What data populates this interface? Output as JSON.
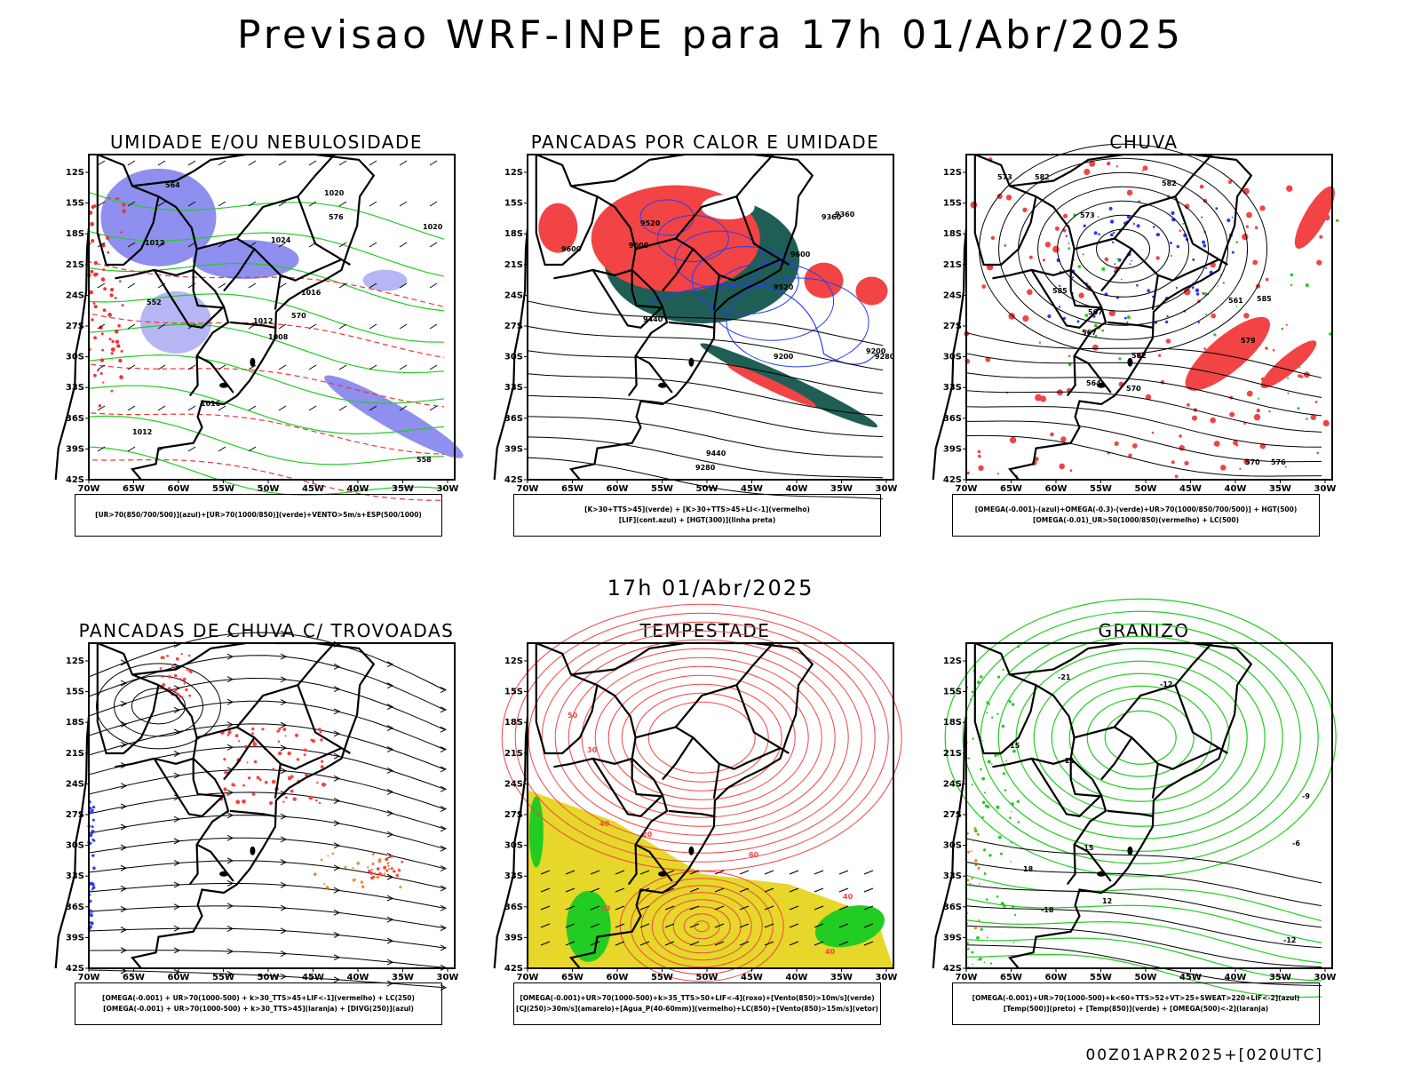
{
  "header": {
    "title": "Previsao WRF-INPE  para 17h 01/Abr/2025"
  },
  "middle_label": "17h 01/Abr/2025",
  "footer": "00Z01APR2025+[020UTC]",
  "axes": {
    "lat_ticks": [
      "12S",
      "15S",
      "18S",
      "21S",
      "24S",
      "27S",
      "30S",
      "33S",
      "36S",
      "39S",
      "42S"
    ],
    "lon_ticks": [
      "70W",
      "65W",
      "60W",
      "55W",
      "50W",
      "45W",
      "40W",
      "35W",
      "30W"
    ]
  },
  "panels": [
    {
      "title": "UMIDADE E/OU NEBULOSIDADE",
      "legend": [
        "[UR>70(850/700/500)](azul)+[UR>70(1000/850)](verde)+VENTO>5m/s+ESP(500/1000)"
      ],
      "contour_labels": [
        "1008",
        "1012",
        "1012",
        "1012",
        "1016",
        "1016",
        "1020",
        "1024",
        "576",
        "570",
        "564",
        "558",
        "552",
        "1020"
      ],
      "colors": {
        "fill": "#8f8ff0",
        "contour": "#22cc22",
        "dashed": "#ee3333"
      }
    },
    {
      "title": "PANCADAS POR CALOR E UMIDADE",
      "legend": [
        "[K>30+TTS>45](verde) + [K>30+TTS>45+LI<-1](vermelho)",
        "[LIF](cont.azul) + [HGT(300)](linha preta)"
      ],
      "contour_labels": [
        "9600",
        "9600",
        "9520",
        "9440",
        "9360",
        "9280",
        "9200",
        "9440",
        "9360",
        "9280",
        "9200",
        "9520",
        "9600"
      ],
      "colors": {
        "green": "#1f5e55",
        "red": "#f24444",
        "blue": "#2a3cf0"
      }
    },
    {
      "title": "CHUVA",
      "legend": [
        "[OMEGA(-0.001)-(azul)+OMEGA(-0.3)-(verde)+UR>70(1000/850/700/500)] + HGT(500)",
        "[OMEGA(-0.01)_UR>50(1000/850)(vermelho) + LC(500)"
      ],
      "contour_labels": [
        "582",
        "585",
        "582",
        "579",
        "576",
        "573",
        "570",
        "567",
        "564",
        "561",
        "585",
        "582",
        "573",
        "570",
        "567"
      ],
      "colors": {
        "red": "#f24444",
        "blue": "#2a3cf0",
        "green": "#22cc22"
      }
    },
    {
      "title": "PANCADAS DE CHUVA C/ TROVOADAS",
      "legend": [
        "[OMEGA(-0.001) + UR>70(1000-500) + k>30_TTS>45+LIF<-1](vermelho) + LC(250)",
        "[OMEGA(-0.001) + UR>70(1000-500) + k>30_TTS>45](laranja) + [DIVG(250)](azul)"
      ],
      "contour_labels": [],
      "colors": {
        "red": "#f24444",
        "orange": "#f08a2a",
        "blue": "#2a3cf0"
      }
    },
    {
      "title": "TEMPESTADE",
      "legend": [
        "[OMEGA(-0.001)+UR>70(1000-500)+k>35_TTS>50+LIF<-4](roxo)+[Vento(850)>10m/s](verde)",
        "[CJ(250)>30m/s](amarelo)+[Agua_P(40-60mm)](vermelho)+LC(850)+[Vento(850)>15m/s](vetor)"
      ],
      "contour_labels": [
        "40",
        "40",
        "60",
        "50",
        "40",
        "30",
        "50",
        "20"
      ],
      "colors": {
        "yellow": "#e6d72a",
        "green": "#22cc22",
        "red": "#f24444"
      }
    },
    {
      "title": "GRANIZO",
      "legend": [
        "[OMEGA(-0.001)+UR>70(1000-500)+k<60+TTS>52+VT>25+SWEAT>220+LIF<-2](azul)",
        "[Temp(500)](preto) + [Temp(850)](verde) + [OMEGA(500)<-2](laranja)"
      ],
      "contour_labels": [
        "21",
        "18",
        "15",
        "12",
        "-6",
        "-9",
        "-12",
        "-15",
        "-18",
        "-21",
        "-12"
      ],
      "colors": {
        "green": "#22cc22",
        "orange": "#f08a2a"
      }
    }
  ]
}
